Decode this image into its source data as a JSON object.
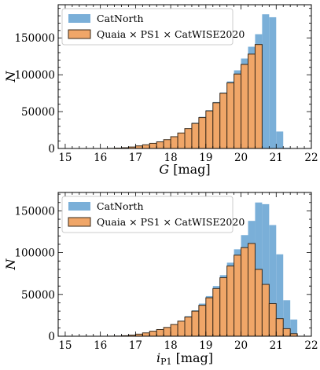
{
  "chart_data": [
    {
      "type": "bar",
      "xlabel_var": "G",
      "xlabel_unit": "[mag]",
      "ylabel": "N",
      "xlim": [
        14.8,
        22
      ],
      "ylim": [
        0,
        195000
      ],
      "xticks": [
        15,
        16,
        17,
        18,
        19,
        20,
        21,
        22
      ],
      "yticks": [
        0,
        50000,
        100000,
        150000
      ],
      "bin_width": 0.2,
      "bin_starts": [
        15.0,
        15.2,
        15.4,
        15.6,
        15.8,
        16.0,
        16.2,
        16.4,
        16.6,
        16.8,
        17.0,
        17.2,
        17.4,
        17.6,
        17.8,
        18.0,
        18.2,
        18.4,
        18.6,
        18.8,
        19.0,
        19.2,
        19.4,
        19.6,
        19.8,
        20.0,
        20.2,
        20.4,
        20.6,
        20.8,
        21.0,
        21.2,
        21.4
      ],
      "legend_position": "upper-left",
      "series": [
        {
          "name": "CatNorth",
          "color": "#7aafd8",
          "values": [
            0,
            0,
            0,
            0,
            0,
            0,
            200,
            500,
            1000,
            2000,
            3500,
            5000,
            7000,
            9000,
            12000,
            16000,
            21000,
            27000,
            35000,
            43000,
            52000,
            63000,
            76000,
            91000,
            106000,
            122000,
            138000,
            155000,
            182000,
            178000,
            23000,
            1000,
            0
          ]
        },
        {
          "name": "Quaia × PS1 × CatWISE2020",
          "color": "#f0a668",
          "values": [
            0,
            0,
            0,
            0,
            0,
            0,
            200,
            500,
            1000,
            2000,
            3500,
            5000,
            7000,
            9000,
            12000,
            16000,
            21000,
            27000,
            34000,
            42000,
            51000,
            62000,
            75000,
            89000,
            101000,
            114000,
            128000,
            141000,
            0,
            0,
            0,
            0,
            0
          ]
        }
      ]
    },
    {
      "type": "bar",
      "xlabel_var": "i",
      "xlabel_sub": "P1",
      "xlabel_unit": "[mag]",
      "ylabel": "N",
      "xlim": [
        14.8,
        22
      ],
      "ylim": [
        0,
        172000
      ],
      "xticks": [
        15,
        16,
        17,
        18,
        19,
        20,
        21,
        22
      ],
      "yticks": [
        0,
        50000,
        100000,
        150000
      ],
      "bin_width": 0.2,
      "bin_starts": [
        15.0,
        15.2,
        15.4,
        15.6,
        15.8,
        16.0,
        16.2,
        16.4,
        16.6,
        16.8,
        17.0,
        17.2,
        17.4,
        17.6,
        17.8,
        18.0,
        18.2,
        18.4,
        18.6,
        18.8,
        19.0,
        19.2,
        19.4,
        19.6,
        19.8,
        20.0,
        20.2,
        20.4,
        20.6,
        20.8,
        21.0,
        21.2,
        21.4
      ],
      "legend_position": "upper-left",
      "series": [
        {
          "name": "CatNorth",
          "color": "#7aafd8",
          "values": [
            0,
            0,
            0,
            0,
            0,
            0,
            100,
            200,
            600,
            1300,
            2500,
            4000,
            6000,
            8000,
            10500,
            14000,
            18500,
            24000,
            31000,
            39000,
            48000,
            60000,
            73000,
            88000,
            104000,
            121000,
            138000,
            160000,
            158000,
            133000,
            98000,
            43000,
            20000
          ]
        },
        {
          "name": "Quaia × PS1 × CatWISE2020",
          "color": "#f0a668",
          "values": [
            0,
            0,
            0,
            0,
            0,
            0,
            100,
            200,
            600,
            1300,
            2500,
            4000,
            6000,
            8000,
            10500,
            14000,
            18000,
            23000,
            30000,
            37000,
            46000,
            57000,
            70000,
            84000,
            97000,
            106000,
            111000,
            80000,
            62000,
            39000,
            21000,
            9000,
            3000
          ]
        }
      ]
    }
  ]
}
